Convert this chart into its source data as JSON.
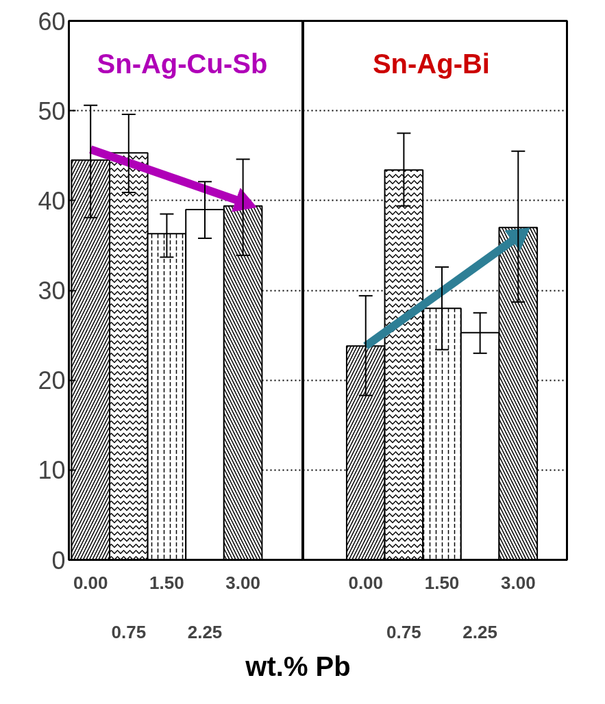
{
  "chart_data": [
    {
      "type": "bar",
      "title": "Sn-Ag-Cu-Sb",
      "xlabel": "wt.% Pb",
      "categories": [
        "0.00",
        "0.75",
        "1.50",
        "2.25",
        "3.00"
      ],
      "series": [
        {
          "values": [
            44.5,
            45.3,
            36.3,
            39.0,
            39.4
          ],
          "colors": [
            "#ffffff",
            "#ffffff",
            "#ffffff",
            "#ffffff",
            "#ffffff"
          ],
          "errors": [
            [
              38.1,
              50.6
            ],
            [
              40.9,
              49.6
            ],
            [
              33.7,
              38.5
            ],
            [
              35.8,
              42.1
            ],
            [
              33.9,
              44.6
            ]
          ]
        },
        {
          "type": "line",
          "x": [
            "0.00",
            "3.00"
          ],
          "values": [
            45.7,
            39.8
          ],
          "color": "#b000b8"
        }
      ],
      "ylim": [
        0,
        60
      ],
      "yticks": [
        0,
        10,
        20,
        30,
        40,
        50,
        60
      ],
      "grid": "y"
    },
    {
      "type": "bar",
      "title": "Sn-Ag-Bi",
      "categories": [
        "0.00",
        "0.75",
        "1.50",
        "2.25",
        "3.00"
      ],
      "series": [
        {
          "values": [
            23.8,
            43.4,
            28.0,
            25.3,
            37.0
          ],
          "colors": [
            "#ffffff",
            "#ffffff",
            "#ffffff",
            "#ffffff",
            "#ffffff"
          ],
          "errors": [
            [
              18.3,
              29.4
            ],
            [
              39.4,
              47.5
            ],
            [
              23.4,
              32.6
            ],
            [
              23.0,
              27.5
            ],
            [
              28.7,
              45.5
            ]
          ]
        },
        {
          "type": "line",
          "x": [
            "0.00",
            "3.00"
          ],
          "values": [
            23.8,
            36.0
          ],
          "color": "#2e7f96"
        }
      ],
      "ylim": [
        0,
        60
      ],
      "yticks": [
        0,
        10,
        20,
        30,
        40,
        50,
        60
      ],
      "grid": "y",
      "tick_labels": "x"
    }
  ]
}
